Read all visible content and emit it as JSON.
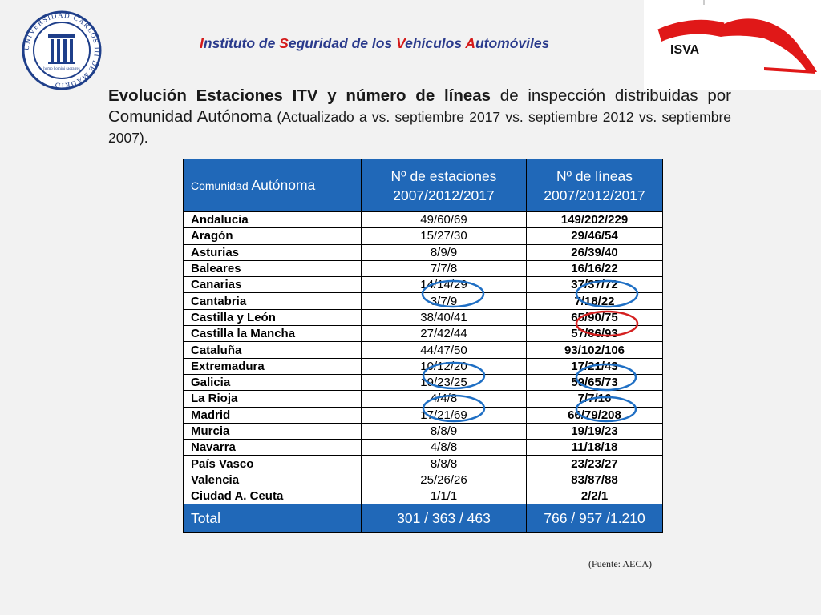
{
  "header": {
    "title_parts": [
      {
        "cap": "I",
        "rest": "nstituto de "
      },
      {
        "cap": "S",
        "rest": "eguridad de los "
      },
      {
        "cap": "V",
        "rest": "ehículos "
      },
      {
        "cap": "A",
        "rest": "utomóviles"
      }
    ],
    "logo_text": "ISVA",
    "seal_text": "UNIVERSIDAD CARLOS III DE MADRID",
    "seal_motto": "homo homini sacra res"
  },
  "heading": {
    "bold_1": "Evolución Estaciones ITV y número de líneas",
    "normal_1": " de inspección distribuidas por Comunidad Autónoma",
    "small_1": " (Actualizado a vs. septiembre 2017 vs. septiembre 2012 vs. septiembre 2007)."
  },
  "table": {
    "col1_header_small": "Comunidad ",
    "col1_header_big": "Autónoma",
    "col2_header": "Nº de estaciones 2007/2012/2017",
    "col3_header": "Nº de líneas 2007/2012/2017",
    "rows": [
      {
        "name": "Andalucia",
        "stations": "49/60/69",
        "lines": "149/202/229"
      },
      {
        "name": "Aragón",
        "stations": "15/27/30",
        "lines": "29/46/54"
      },
      {
        "name": "Asturias",
        "stations": "8/9/9",
        "lines": "26/39/40"
      },
      {
        "name": "Baleares",
        "stations": "7/7/8",
        "lines": "16/16/22"
      },
      {
        "name": "Canarias",
        "stations": "14/14/29",
        "lines": "37/37/72"
      },
      {
        "name": "Cantabria",
        "stations": "3/7/9",
        "lines": "7/18/22"
      },
      {
        "name": "Castilla y León",
        "stations": "38/40/41",
        "lines": "65/90/75"
      },
      {
        "name": "Castilla la Mancha",
        "stations": "27/42/44",
        "lines": "57/86/93"
      },
      {
        "name": "Cataluña",
        "stations": "44/47/50",
        "lines": "93/102/106"
      },
      {
        "name": "Extremadura",
        "stations": "10/12/20",
        "lines": "17/21/43"
      },
      {
        "name": "Galicia",
        "stations": "19/23/25",
        "lines": "59/65/73"
      },
      {
        "name": "La Rioja",
        "stations": "4/4/8",
        "lines": "7/7/16"
      },
      {
        "name": "Madrid",
        "stations": "17/21/69",
        "lines": "66/79/208"
      },
      {
        "name": "Murcia",
        "stations": "8/8/9",
        "lines": "19/19/23"
      },
      {
        "name": "Navarra",
        "stations": "4/8/8",
        "lines": "11/18/18"
      },
      {
        "name": "País Vasco",
        "stations": "8/8/8",
        "lines": "23/23/27"
      },
      {
        "name": "Valencia",
        "stations": "25/26/26",
        "lines": "83/87/88"
      },
      {
        "name": "Ciudad A. Ceuta",
        "stations": "1/1/1",
        "lines": "2/2/1"
      }
    ],
    "total": {
      "name": "Total",
      "stations": "301 / 363 / 463",
      "lines": "766 / 957 /1.210"
    }
  },
  "source": "(Fuente: AECA)",
  "colors": {
    "header_blue": "#2068b8",
    "title_blue": "#2a3a8c",
    "accent_red": "#d41a1a",
    "circle_blue": "#1f6fc4",
    "circle_red": "#d42020"
  }
}
